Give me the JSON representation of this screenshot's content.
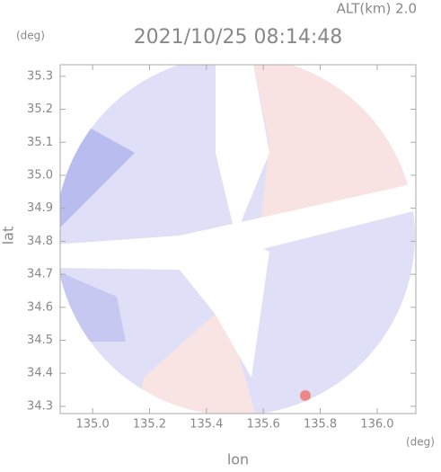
{
  "chart_data": {
    "type": "radar-image",
    "title": "2021/10/25 08:14:48",
    "subtitle": "ALT(km) 2.0",
    "y_unit": "(deg)",
    "x_unit": "(deg)",
    "xlabel": "lon",
    "ylabel": "lat",
    "xlim": [
      134.886,
      136.136
    ],
    "ylim": [
      34.278,
      35.335
    ],
    "xticks": [
      {
        "value": 135,
        "label": "135.0"
      },
      135.2,
      135.4,
      135.6,
      135.8,
      {
        "value": 136,
        "label": "136.0"
      }
    ],
    "yticks": [
      34.3,
      34.4,
      34.5,
      34.6,
      34.7,
      34.8,
      34.9,
      {
        "value": 35,
        "label": "35.0"
      },
      35.1,
      35.2,
      35.3
    ]
  }
}
